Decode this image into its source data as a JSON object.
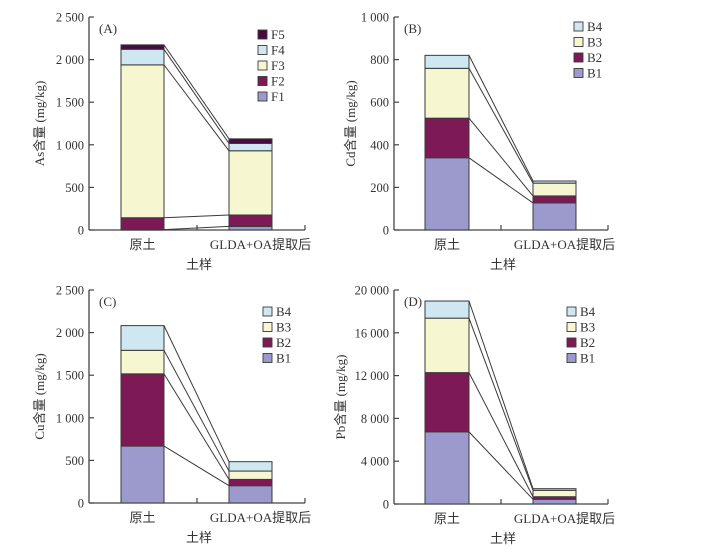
{
  "colors": {
    "F1": "#9c9acc",
    "F2": "#7d1a56",
    "F3": "#f6f6d0",
    "F4": "#cfe7f1",
    "F5": "#480a42",
    "B1": "#9c9acc",
    "B2": "#7d1a56",
    "B3": "#f6f6d0",
    "B4": "#cfe7f1"
  },
  "chart_data": [
    {
      "type": "bar",
      "stacked": true,
      "panel_label": "(A)",
      "title": "",
      "xlabel": "土样",
      "ylabel": "As含量 (mg/kg)",
      "ylim": [
        0,
        2500
      ],
      "yticks": [
        0,
        500,
        1000,
        1500,
        2000,
        2500
      ],
      "ytick_labels": [
        "0",
        "500",
        "1 000",
        "1 500",
        "2 000",
        "2 500"
      ],
      "categories": [
        "原土",
        "GLDA+OA提取后"
      ],
      "legend_position": "top-right",
      "legend_order": [
        "F5",
        "F4",
        "F3",
        "F2",
        "F1"
      ],
      "series": [
        {
          "name": "F1",
          "values": [
            5,
            42
          ]
        },
        {
          "name": "F2",
          "values": [
            139,
            134
          ]
        },
        {
          "name": "F3",
          "values": [
            1794,
            754
          ]
        },
        {
          "name": "F4",
          "values": [
            183,
            86
          ]
        },
        {
          "name": "F5",
          "values": [
            52,
            54
          ]
        }
      ],
      "grid": false
    },
    {
      "type": "bar",
      "stacked": true,
      "panel_label": "(B)",
      "title": "",
      "xlabel": "土样",
      "ylabel": "Cd含量 (mg/kg)",
      "ylim": [
        0,
        1000
      ],
      "yticks": [
        0,
        200,
        400,
        600,
        800,
        1000
      ],
      "ytick_labels": [
        "0",
        "200",
        "400",
        "600",
        "800",
        "1 000"
      ],
      "categories": [
        "原土",
        "GLDA+OA提取后"
      ],
      "legend_position": "top-right",
      "legend_order": [
        "B4",
        "B3",
        "B2",
        "B1"
      ],
      "series": [
        {
          "name": "B1",
          "values": [
            339,
            127
          ]
        },
        {
          "name": "B2",
          "values": [
            186,
            33
          ]
        },
        {
          "name": "B3",
          "values": [
            234,
            60
          ]
        },
        {
          "name": "B4",
          "values": [
            61,
            10
          ]
        }
      ],
      "grid": false
    },
    {
      "type": "bar",
      "stacked": true,
      "panel_label": "(C)",
      "title": "",
      "xlabel": "土样",
      "ylabel": "Cu含量 (mg/kg)",
      "ylim": [
        0,
        2500
      ],
      "yticks": [
        0,
        500,
        1000,
        1500,
        2000,
        2500
      ],
      "ytick_labels": [
        "0",
        "500",
        "1 000",
        "1 500",
        "2 000",
        "2 500"
      ],
      "categories": [
        "原土",
        "GLDA+OA提取后"
      ],
      "legend_position": "top-right",
      "legend_order": [
        "B4",
        "B3",
        "B2",
        "B1"
      ],
      "series": [
        {
          "name": "B1",
          "values": [
            668,
            203
          ]
        },
        {
          "name": "B2",
          "values": [
            848,
            74
          ]
        },
        {
          "name": "B3",
          "values": [
            276,
            98
          ]
        },
        {
          "name": "B4",
          "values": [
            290,
            110
          ]
        }
      ],
      "grid": false
    },
    {
      "type": "bar",
      "stacked": true,
      "panel_label": "(D)",
      "title": "",
      "xlabel": "土样",
      "ylabel": "Pb含量 (mg/kg)",
      "ylim": [
        0,
        20000
      ],
      "yticks": [
        0,
        4000,
        8000,
        12000,
        16000,
        20000
      ],
      "ytick_labels": [
        "0",
        "4 000",
        "8 000",
        "12 000",
        "16 000",
        "20 000"
      ],
      "categories": [
        "原土",
        "GLDA+OA提取后"
      ],
      "legend_position": "top-right",
      "legend_order": [
        "B4",
        "B3",
        "B2",
        "B1"
      ],
      "series": [
        {
          "name": "B1",
          "values": [
            6740,
            440
          ]
        },
        {
          "name": "B2",
          "values": [
            5540,
            240
          ]
        },
        {
          "name": "B3",
          "values": [
            5090,
            600
          ]
        },
        {
          "name": "B4",
          "values": [
            1600,
            150
          ]
        }
      ],
      "grid": false
    }
  ]
}
